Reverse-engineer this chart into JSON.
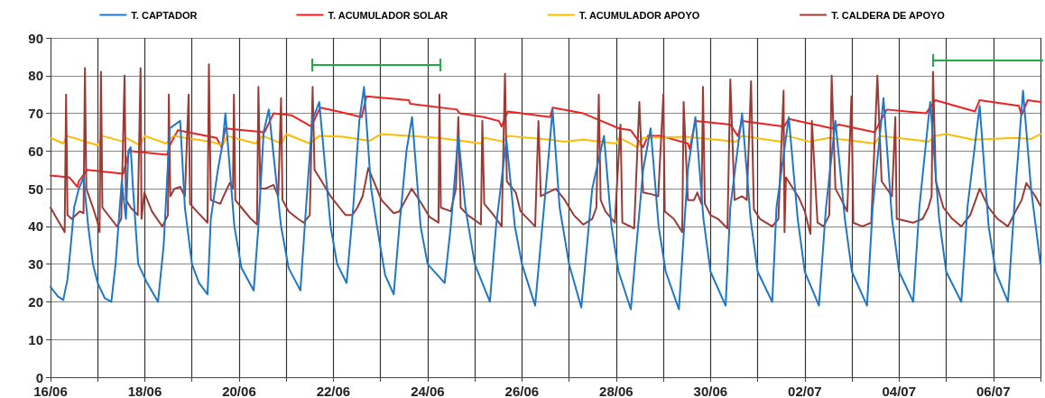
{
  "chart_data": {
    "type": "line",
    "marker": "none",
    "grid": true,
    "legend": "top",
    "xlim": [
      "--06-16",
      "--07-07"
    ],
    "ylim": [
      0,
      90
    ],
    "yticks": [
      0,
      10,
      20,
      30,
      40,
      50,
      60,
      70,
      80,
      90
    ],
    "xticks": [
      {
        "value": "--06-16",
        "label": "16/06"
      },
      {
        "value": "--06-17",
        "label": null
      },
      {
        "value": "--06-18",
        "label": "18/06"
      },
      {
        "value": "--06-19",
        "label": null
      },
      {
        "value": "--06-20",
        "label": "20/06"
      },
      {
        "value": "--06-21",
        "label": null
      },
      {
        "value": "--06-22",
        "label": "22/06"
      },
      {
        "value": "--06-23",
        "label": null
      },
      {
        "value": "--06-24",
        "label": "24/06"
      },
      {
        "value": "--06-25",
        "label": null
      },
      {
        "value": "--06-26",
        "label": "26/06"
      },
      {
        "value": "--06-27",
        "label": null
      },
      {
        "value": "--06-28",
        "label": "28/06"
      },
      {
        "value": "--06-29",
        "label": null
      },
      {
        "value": "--06-30",
        "label": "30/06"
      },
      {
        "value": "--07-01",
        "label": null
      },
      {
        "value": "--07-02",
        "label": "02/07"
      },
      {
        "value": "--07-03",
        "label": null
      },
      {
        "value": "--07-04",
        "label": "04/07"
      },
      {
        "value": "--07-05",
        "label": null
      },
      {
        "value": "--07-06",
        "label": "06/07"
      },
      {
        "value": "--07-07",
        "label": null
      }
    ],
    "series": [
      {
        "name": "T. CAPTADOR",
        "color": "#1f77c8",
        "x": [
          "--06-16T00:00",
          "--06-16T03:36",
          "--06-16T06:29",
          "--06-16T08:38",
          "--06-16T10:19",
          "--06-16T12:00",
          "--06-16T14:24",
          "--06-16T16:48",
          "--06-16T19:12",
          "--06-16T21:36",
          "--06-17T00:00",
          "--06-17T03:36",
          "--06-17T06:58",
          "--06-17T09:07",
          "--06-17T12:14",
          "--06-17T14:24",
          "--06-17T15:36",
          "--06-17T16:48",
          "--06-17T18:00",
          "--06-17T20:38",
          "--06-18T01:12",
          "--06-18T06:43",
          "--06-18T09:36",
          "--06-18T12:43",
          "--06-18T18:00",
          "--06-18T20:24",
          "--06-19T00:00",
          "--06-19T03:36",
          "--06-19T07:55",
          "--06-19T09:36",
          "--06-19T13:12",
          "--06-19T15:36",
          "--06-19T17:02",
          "--06-19T21:36",
          "--06-20T01:12",
          "--06-20T07:26",
          "--06-20T09:50",
          "--06-20T12:29",
          "--06-20T15:07",
          "--06-20T21:22",
          "--06-21T01:12",
          "--06-21T07:12",
          "--06-21T10:05",
          "--06-21T13:12",
          "--06-21T16:48",
          "--06-21T22:34",
          "--06-22T01:55",
          "--06-22T06:43",
          "--06-22T10:05",
          "--06-22T13:12",
          "--06-22T15:36",
          "--06-22T19:12",
          "--06-22T23:46",
          "--06-23T02:24",
          "--06-23T06:43",
          "--06-23T09:36",
          "--06-23T13:12",
          "--06-23T16:05",
          "--06-23T20:24",
          "--06-24T00:00",
          "--06-24T08:38",
          "--06-24T11:46",
          "--06-24T15:36",
          "--06-24T19:12",
          "--06-25T00:00",
          "--06-25T07:41",
          "--06-25T10:48",
          "--06-25T16:05",
          "--06-25T20:24",
          "--06-26T00:00",
          "--06-26T06:43",
          "--06-26T12:58",
          "--06-26T15:36",
          "--06-26T19:12",
          "--06-27T00:00",
          "--06-27T06:14",
          "--06-27T11:46",
          "--06-27T17:46",
          "--06-27T21:36",
          "--06-28T01:12",
          "--06-28T07:26",
          "--06-28T13:41",
          "--06-28T17:31",
          "--06-28T21:36",
          "--06-29T01:12",
          "--06-29T07:55",
          "--06-29T12:29",
          "--06-29T16:19",
          "--06-29T20:24",
          "--06-30T00:00",
          "--06-30T07:41",
          "--06-30T10:05",
          "--06-30T16:05",
          "--06-30T20:24",
          "--07-01T00:00",
          "--07-01T07:26",
          "--07-01T09:36",
          "--07-01T15:50",
          "--07-01T20:24",
          "--07-02T00:00",
          "--07-02T07:12",
          "--07-02T10:48",
          "--07-02T15:36",
          "--07-02T20:24",
          "--07-03T00:00",
          "--07-03T07:41",
          "--07-03T10:34",
          "--07-03T16:05",
          "--07-03T20:24",
          "--07-04T00:00",
          "--07-04T07:12",
          "--07-04T10:19",
          "--07-04T15:50",
          "--07-04T20:24",
          "--07-05T00:00",
          "--07-05T07:41",
          "--07-05T10:48",
          "--07-05T17:02",
          "--07-05T21:36",
          "--07-06T01:12",
          "--07-06T07:26",
          "--07-06T11:17",
          "--07-06T15:07",
          "--07-06T19:12",
          "--07-07T00:00"
        ],
        "values": [
          24,
          21.5,
          20.5,
          26,
          35,
          45,
          50,
          53,
          40,
          30,
          25,
          21,
          20,
          30,
          52,
          42,
          60,
          61,
          50,
          30,
          25,
          20,
          35,
          66,
          68,
          45,
          30,
          25,
          22,
          42,
          55,
          62,
          70,
          40,
          29,
          23,
          40,
          65,
          71,
          40,
          29,
          23,
          45,
          68,
          73,
          40,
          30,
          25,
          45,
          68,
          77,
          50,
          35,
          27,
          22,
          40,
          60,
          69,
          40,
          30,
          25,
          40,
          64,
          45,
          30,
          20,
          40,
          63,
          40,
          30,
          19,
          55,
          71,
          45,
          30,
          18.5,
          50,
          64,
          40,
          28,
          18,
          55,
          66,
          40,
          28,
          18,
          55,
          69,
          42,
          28,
          19,
          45,
          70,
          42,
          28,
          20,
          45,
          69,
          42,
          28,
          19,
          45,
          68,
          42,
          28,
          19,
          45,
          74,
          42,
          28,
          20,
          45,
          73,
          42,
          28,
          20,
          45,
          72,
          40,
          28,
          20,
          50,
          76,
          50,
          30
        ]
      },
      {
        "name": "T. ACUMULADOR SOLAR",
        "color": "#ee2222",
        "x": [
          "--06-16T00:00",
          "--06-16T09:36",
          "--06-16T13:41",
          "--06-16T14:24",
          "--06-16T18:43",
          "--06-17T12:58",
          "--06-17T16:05",
          "--06-18T11:17",
          "--06-18T13:12",
          "--06-18T16:48",
          "--06-19T12:29",
          "--06-19T15:07",
          "--06-19T17:02",
          "--06-20T12:58",
          "--06-20T17:31",
          "--06-21T02:38",
          "--06-21T12:43",
          "--06-21T17:17",
          "--06-22T02:24",
          "--06-22T14:24",
          "--06-22T16:48",
          "--06-23T14:24",
          "--06-23T15:07",
          "--06-24T14:53",
          "--06-24T16:19",
          "--06-25T04:34",
          "--06-25T12:14",
          "--06-25T13:41",
          "--06-25T16:48",
          "--06-26T14:24",
          "--06-26T15:36",
          "--06-27T07:12",
          "--06-27T16:19",
          "--06-28T01:26",
          "--06-28T07:26",
          "--06-28T13:41",
          "--06-28T16:05",
          "--06-28T22:48",
          "--06-29T12:29",
          "--06-29T13:26",
          "--06-29T16:19",
          "--06-30T10:05",
          "--06-30T13:55",
          "--06-30T16:05",
          "--07-01T13:26",
          "--07-01T15:50",
          "--07-02T13:55",
          "--07-02T17:17",
          "--07-03T11:31",
          "--07-03T17:46",
          "--07-04T13:41",
          "--07-04T18:29",
          "--07-05T14:38",
          "--07-05T17:02",
          "--07-06T12:58",
          "--07-06T14:24",
          "--07-06T17:31",
          "--07-07T00:00"
        ],
        "values": [
          53.5,
          53,
          50.5,
          52,
          55,
          54,
          60,
          59,
          62,
          65.5,
          63.5,
          61,
          66,
          65,
          70,
          69.5,
          66.5,
          71.5,
          70.5,
          69,
          74.5,
          73.5,
          72.5,
          71,
          70,
          69,
          68,
          66.5,
          70.5,
          69,
          71.5,
          70,
          68,
          66,
          65.5,
          61,
          64,
          64,
          62,
          60.5,
          68,
          67,
          64,
          68,
          66.5,
          68.5,
          66,
          67,
          65,
          71,
          70,
          73.5,
          70.5,
          73.5,
          72,
          69.5,
          73.5,
          73
        ]
      },
      {
        "name": "T. ACUMULADOR APOYO",
        "color": "#ffbb00",
        "x": [
          "--06-16T00:00",
          "--06-16T06:29",
          "--06-16T08:24",
          "--06-17T00:00",
          "--06-17T02:24",
          "--06-17T12:58",
          "--06-17T14:24",
          "--06-17T21:36",
          "--06-18T00:00",
          "--06-18T10:48",
          "--06-18T14:24",
          "--06-19T09:36",
          "--06-19T15:36",
          "--06-19T18:00",
          "--06-20T08:24",
          "--06-20T12:00",
          "--06-20T21:36",
          "--06-21T00:00",
          "--06-21T12:00",
          "--06-21T16:48",
          "--06-22T04:48",
          "--06-22T18:29",
          "--06-23T00:00",
          "--06-24T05:46",
          "--06-25T03:07",
          "--06-25T04:48",
          "--06-25T14:38",
          "--06-25T16:48",
          "--06-26T14:24",
          "--06-26T21:36",
          "--06-27T07:12",
          "--06-28T00:00",
          "--06-28T01:26",
          "--06-28T07:12",
          "--06-28T10:34",
          "--06-28T13:41",
          "--06-29T11:02",
          "--06-30T13:12",
          "--06-30T16:05",
          "--07-01T12:00",
          "--07-01T14:53",
          "--07-02T02:24",
          "--07-02T12:29",
          "--07-03T11:31",
          "--07-03T14:24",
          "--07-04T15:07",
          "--07-04T18:00",
          "--07-05T00:00",
          "--07-05T13:41",
          "--07-06T11:17",
          "--07-06T19:12",
          "--07-07T00:00"
        ],
        "values": [
          63.5,
          62,
          64,
          61.5,
          64,
          62.5,
          63.5,
          61.5,
          64,
          62,
          64,
          62.5,
          61.5,
          64,
          62,
          64,
          62,
          64.5,
          62,
          64,
          63.8,
          62.7,
          64.5,
          63.5,
          62,
          63.5,
          62.5,
          64,
          63,
          62.5,
          63,
          62,
          63.5,
          62,
          61,
          63.5,
          63.8,
          62.5,
          64,
          62.5,
          64,
          62.5,
          63.5,
          62,
          64,
          62.5,
          64,
          64.5,
          63,
          63.5,
          63.2,
          64.5
        ]
      },
      {
        "name": "T. CALDERA DE APOYO",
        "color": "#9b3b36",
        "x": [
          "--06-16T00:00",
          "--06-16T07:12",
          "--06-16T07:55",
          "--06-16T08:38",
          "--06-16T10:48",
          "--06-16T14:53",
          "--06-16T16:48",
          "--06-16T17:31",
          "--06-16T18:14",
          "--06-16T21:36",
          "--06-17T00:00",
          "--06-17T00:58",
          "--06-17T01:41",
          "--06-17T02:24",
          "--06-17T09:50",
          "--06-17T12:00",
          "--06-17T13:41",
          "--06-17T14:24",
          "--06-17T16:48",
          "--06-17T20:24",
          "--06-17T21:50",
          "--06-17T22:19",
          "--06-17T23:46",
          "--06-18T03:36",
          "--06-18T08:53",
          "--06-18T11:46",
          "--06-18T12:14",
          "--06-18T12:58",
          "--06-18T15:07",
          "--06-18T18:00",
          "--06-18T20:24",
          "--06-18T22:19",
          "--06-18T23:02",
          "--06-19T02:24",
          "--06-19T07:55",
          "--06-19T08:38",
          "--06-19T09:36",
          "--06-19T14:24",
          "--06-19T16:05",
          "--06-19T19:12",
          "--06-19T20:53",
          "--06-19T21:22",
          "--06-19T22:05",
          "--06-20T01:12",
          "--06-20T06:00",
          "--06-20T09:07",
          "--06-20T09:50",
          "--06-20T10:48",
          "--06-20T13:12",
          "--06-20T17:31",
          "--06-20T19:55",
          "--06-20T21:22",
          "--06-20T22:05",
          "--06-21T01:12",
          "--06-21T06:00",
          "--06-21T08:53",
          "--06-21T12:00",
          "--06-21T13:26",
          "--06-21T14:24",
          "--06-21T18:00",
          "--06-21T22:34",
          "--06-22T03:07",
          "--06-22T06:14",
          "--06-22T09:36",
          "--06-22T12:14",
          "--06-22T14:53",
          "--06-22T17:46",
          "--06-23T00:29",
          "--06-23T06:43",
          "--06-23T09:36",
          "--06-23T15:50",
          "--06-23T20:24",
          "--06-24T00:58",
          "--06-24T05:31",
          "--06-24T06:00",
          "--06-24T06:43",
          "--06-24T11:46",
          "--06-24T14:24",
          "--06-24T15:36",
          "--06-24T16:48",
          "--06-24T20:24",
          "--06-25T03:07",
          "--06-25T03:50",
          "--06-25T04:48",
          "--06-25T09:36",
          "--06-25T13:41",
          "--06-25T15:22",
          "--06-25T16:19",
          "--06-25T20:53",
          "--06-25T23:17",
          "--06-26T06:43",
          "--06-26T08:24",
          "--06-26T09:36",
          "--06-26T13:12",
          "--06-26T17:17",
          "--06-26T21:50",
          "--06-27T02:24",
          "--06-27T07:12",
          "--06-27T11:46",
          "--06-27T13:55",
          "--06-27T15:07",
          "--06-27T16:05",
          "--06-27T18:29",
          "--06-27T23:17",
          "--06-28T02:10",
          "--06-28T03:07",
          "--06-28T09:07",
          "--06-28T11:46",
          "--06-28T13:41",
          "--06-28T18:14",
          "--06-28T21:22",
          "--06-29T00:00",
          "--06-29T00:43",
          "--06-29T05:17",
          "--06-29T09:36",
          "--06-29T10:19",
          "--06-29T12:29",
          "--06-29T15:36",
          "--06-29T17:17",
          "--06-29T19:26",
          "--06-29T20:10",
          "--06-29T21:07",
          "--06-30T00:00",
          "--06-30T03:50",
          "--06-30T08:38",
          "--06-30T10:05",
          "--06-30T12:14",
          "--06-30T16:05",
          "--06-30T18:29",
          "--06-30T20:38",
          "--06-30T22:05",
          "--07-01T01:12",
          "--07-01T07:26",
          "--07-01T10:34",
          "--07-01T13:12",
          "--07-01T13:41",
          "--07-01T14:24",
          "--07-01T21:07",
          "--07-02T00:00",
          "--07-02T02:53",
          "--07-02T03:36",
          "--07-02T06:29",
          "--07-02T09:36",
          "--07-02T12:29",
          "--07-02T13:41",
          "--07-02T15:36",
          "--07-02T18:43",
          "--07-02T21:36",
          "--07-02T23:46",
          "--07-03T00:43",
          "--07-03T05:17",
          "--07-03T09:50",
          "--07-03T12:58",
          "--07-03T15:07",
          "--07-03T20:24",
          "--07-03T22:05",
          "--07-03T22:48",
          "--07-04T07:12",
          "--07-04T12:00",
          "--07-04T14:53",
          "--07-04T16:34",
          "--07-04T17:17",
          "--07-04T18:43",
          "--07-04T22:34",
          "--07-05T03:07",
          "--07-05T07:41",
          "--07-05T12:14",
          "--07-05T17:02",
          "--07-05T21:36",
          "--07-06T02:10",
          "--07-06T07:26",
          "--07-06T11:17",
          "--07-06T14:24",
          "--07-06T16:48",
          "--07-06T21:22",
          "--07-07T00:00"
        ],
        "values": [
          45,
          38.5,
          75,
          43,
          42,
          44,
          43.5,
          82,
          50,
          45,
          41,
          38.5,
          81,
          45,
          40,
          42,
          80,
          47,
          45,
          43,
          82,
          42,
          49,
          44,
          40,
          43,
          75,
          48,
          50,
          50.5,
          48,
          75,
          46,
          44,
          41,
          83,
          47,
          46,
          48,
          51.5,
          50,
          75,
          47,
          45,
          42,
          40.5,
          77,
          50,
          50,
          51,
          48,
          74,
          47,
          44,
          42,
          41,
          43,
          77,
          55,
          52,
          48,
          45,
          43,
          43,
          45,
          48,
          55.5,
          47,
          43.5,
          44,
          50,
          46.5,
          42.5,
          41,
          75,
          45,
          44,
          50,
          69,
          45,
          43,
          40.5,
          68,
          46,
          43,
          40,
          80.5,
          52,
          49,
          44,
          40,
          68,
          48,
          49,
          50,
          47,
          43,
          40.5,
          42,
          45,
          75,
          47,
          44,
          41,
          67,
          41,
          39.5,
          73,
          49,
          48.5,
          48,
          75,
          44,
          42,
          38.5,
          73,
          47,
          47,
          49,
          46,
          77,
          46,
          43,
          42,
          39.5,
          79,
          47,
          48,
          47,
          78.5,
          44.5,
          42,
          40,
          42,
          76,
          38.5,
          53,
          47.5,
          44,
          38,
          68,
          41,
          40,
          43,
          80,
          50,
          47,
          44,
          74.5,
          41,
          40,
          41,
          80,
          52,
          48,
          69,
          42,
          41,
          42,
          45,
          48,
          81,
          52,
          45,
          42,
          40,
          43,
          50,
          45,
          42,
          40,
          44,
          47,
          51.5,
          48,
          45.5
        ]
      }
    ]
  }
}
